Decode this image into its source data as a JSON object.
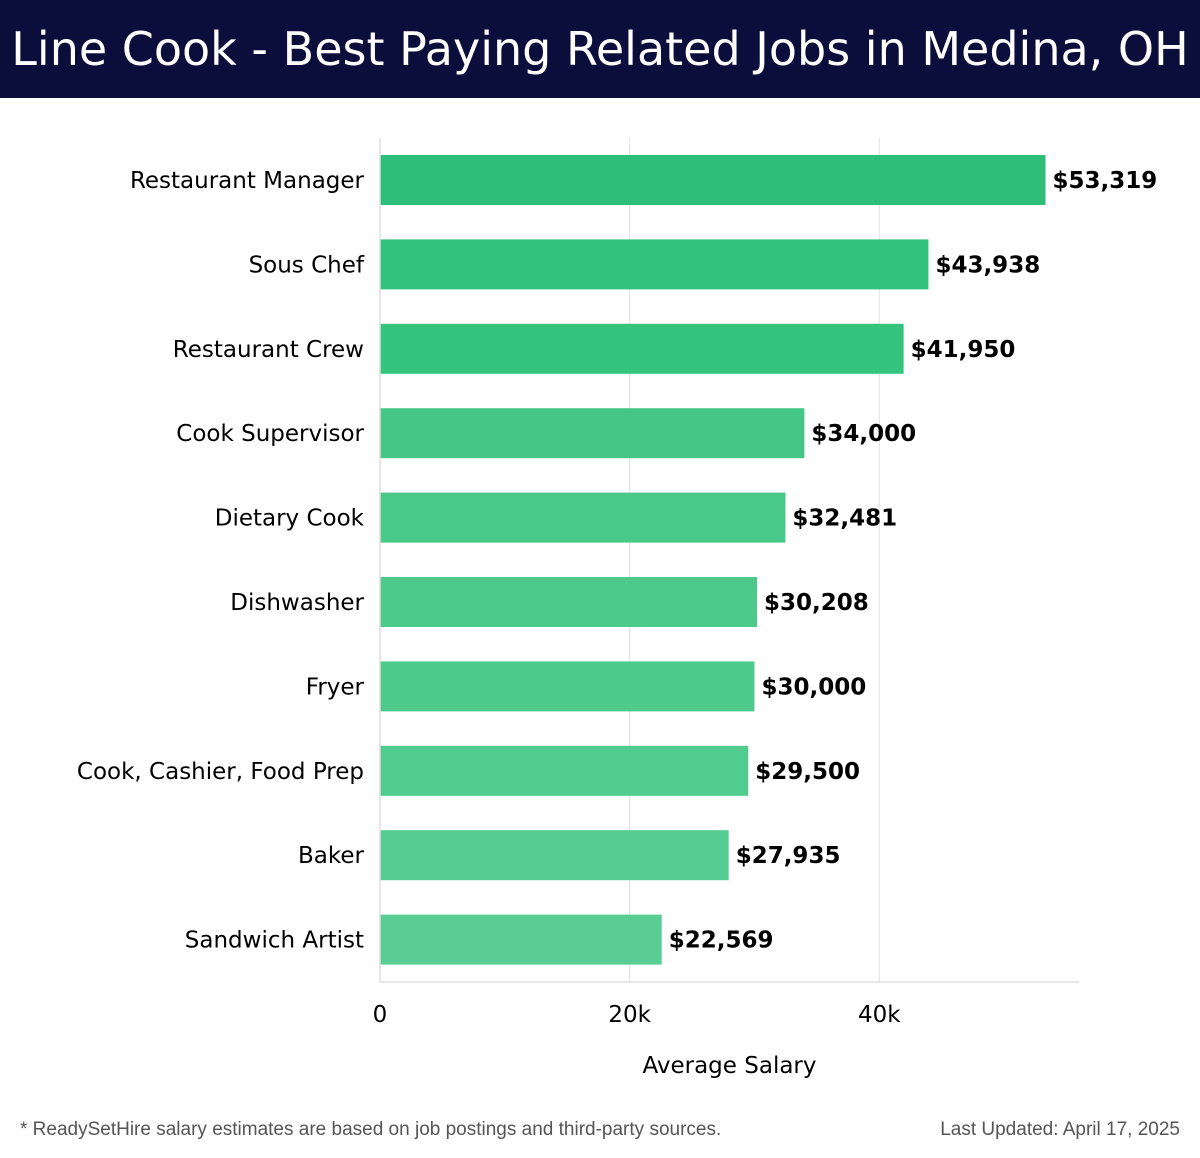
{
  "header": {
    "title": "Line Cook - Best Paying Related Jobs in Medina, OH"
  },
  "footer": {
    "note": "* ReadySetHire salary estimates are based on job postings and third-party sources.",
    "updated": "Last Updated: April 17, 2025"
  },
  "chart_data": {
    "type": "bar",
    "orientation": "horizontal",
    "title": "Line Cook - Best Paying Related Jobs in Medina, OH",
    "xlabel": "Average Salary",
    "ylabel": "",
    "xlim": [
      0,
      56000
    ],
    "x_ticks": [
      0,
      20000,
      40000
    ],
    "x_tick_labels": [
      "0",
      "20k",
      "40k"
    ],
    "grid": true,
    "categories": [
      "Restaurant Manager",
      "Sous Chef",
      "Restaurant Crew",
      "Cook Supervisor",
      "Dietary Cook",
      "Dishwasher",
      "Fryer",
      "Cook, Cashier, Food Prep",
      "Baker",
      "Sandwich Artist"
    ],
    "values": [
      53319,
      43938,
      41950,
      34000,
      32481,
      30208,
      30000,
      29500,
      27935,
      22569
    ],
    "value_labels": [
      "$53,319",
      "$43,938",
      "$41,950",
      "$34,000",
      "$32,481",
      "$30,208",
      "$30,000",
      "$29,500",
      "$27,935",
      "$22,569"
    ],
    "colors": [
      "#2dbf78",
      "#31c27b",
      "#35c47e",
      "#44c786",
      "#48c889",
      "#4cc98b",
      "#4fca8d",
      "#52cb8f",
      "#55cc91",
      "#5acd95"
    ]
  }
}
